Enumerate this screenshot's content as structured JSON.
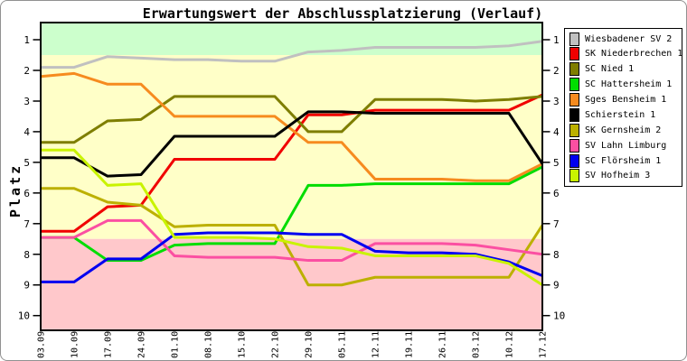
{
  "figure_title": "Erwartungswert der Abschlussplatzierung (Verlauf)",
  "chart_data": {
    "type": "line",
    "title": "Erwartungswert der Abschlussplatzierung (Verlauf)",
    "ylabel": "Platz",
    "y_inverted": true,
    "ylim": [
      0.44,
      10.48
    ],
    "y_ticks": [
      1,
      2,
      3,
      4,
      5,
      6,
      7,
      8,
      9,
      10
    ],
    "x_labels": [
      "03.09",
      "10.09",
      "17.09",
      "24.09",
      "01.10",
      "08.10",
      "15.10",
      "22.10",
      "29.10",
      "05.11",
      "12.11",
      "19.11",
      "26.11",
      "03.12",
      "10.12",
      "17.12"
    ],
    "legend_position": "right-outside",
    "grid": false,
    "zones": [
      {
        "name": "promotion-zone",
        "from_platz": 0.44,
        "to_platz": 1.5,
        "color": "#ccffcc"
      },
      {
        "name": "mid-zone",
        "from_platz": 1.5,
        "to_platz": 7.5,
        "color": "#ffffc8"
      },
      {
        "name": "relegation-zone",
        "from_platz": 7.5,
        "to_platz": 10.48,
        "color": "#ffc8cb"
      }
    ],
    "series": [
      {
        "name": "Wiesbadener SV 2",
        "color": "#c0c0c0",
        "values": [
          1.9,
          1.9,
          1.55,
          1.6,
          1.65,
          1.65,
          1.7,
          1.7,
          1.4,
          1.35,
          1.25,
          1.25,
          1.25,
          1.25,
          1.2,
          1.05
        ]
      },
      {
        "name": "SK Niederbrechen 1",
        "color": "#f00000",
        "values": [
          7.25,
          7.25,
          6.45,
          6.4,
          4.9,
          4.9,
          4.9,
          4.9,
          3.45,
          3.45,
          3.3,
          3.3,
          3.3,
          3.3,
          3.3,
          2.8
        ]
      },
      {
        "name": "SC Nied 1",
        "color": "#7e7e00",
        "values": [
          4.35,
          4.35,
          3.65,
          3.6,
          2.85,
          2.85,
          2.85,
          2.85,
          4.0,
          4.0,
          2.95,
          2.95,
          2.95,
          3.0,
          2.95,
          2.85
        ]
      },
      {
        "name": "SC Hattersheim 1",
        "color": "#00dd00",
        "values": [
          7.45,
          7.45,
          8.2,
          8.2,
          7.7,
          7.65,
          7.65,
          7.65,
          5.75,
          5.75,
          5.7,
          5.7,
          5.7,
          5.7,
          5.7,
          5.15
        ]
      },
      {
        "name": "Sges Bensheim 1",
        "color": "#f68b1f",
        "values": [
          2.2,
          2.1,
          2.45,
          2.45,
          3.5,
          3.5,
          3.5,
          3.5,
          4.35,
          4.35,
          5.55,
          5.55,
          5.55,
          5.6,
          5.6,
          5.05
        ]
      },
      {
        "name": "Schierstein 1",
        "color": "#000000",
        "values": [
          4.85,
          4.85,
          5.45,
          5.4,
          4.15,
          4.15,
          4.15,
          4.15,
          3.35,
          3.35,
          3.4,
          3.4,
          3.4,
          3.4,
          3.4,
          5.05
        ]
      },
      {
        "name": "SK Gernsheim 2",
        "color": "#bcb000",
        "values": [
          5.85,
          5.85,
          6.3,
          6.4,
          7.1,
          7.05,
          7.05,
          7.05,
          9.0,
          9.0,
          8.75,
          8.75,
          8.75,
          8.75,
          8.75,
          7.05
        ]
      },
      {
        "name": "SV Lahn Limburg",
        "color": "#fb4fa2",
        "values": [
          7.45,
          7.45,
          6.9,
          6.9,
          8.05,
          8.1,
          8.1,
          8.1,
          8.2,
          8.2,
          7.65,
          7.65,
          7.65,
          7.7,
          7.85,
          8.0
        ]
      },
      {
        "name": "SC Flörsheim 1",
        "color": "#0000f0",
        "values": [
          8.9,
          8.9,
          8.15,
          8.15,
          7.35,
          7.3,
          7.3,
          7.3,
          7.35,
          7.35,
          7.9,
          7.95,
          7.95,
          8.0,
          8.25,
          8.7
        ]
      },
      {
        "name": "SV Hofheim 3",
        "color": "#c9f300",
        "values": [
          4.6,
          4.6,
          5.75,
          5.7,
          7.45,
          7.45,
          7.45,
          7.5,
          7.75,
          7.8,
          8.05,
          8.05,
          8.05,
          8.05,
          8.3,
          9.0
        ]
      }
    ]
  }
}
